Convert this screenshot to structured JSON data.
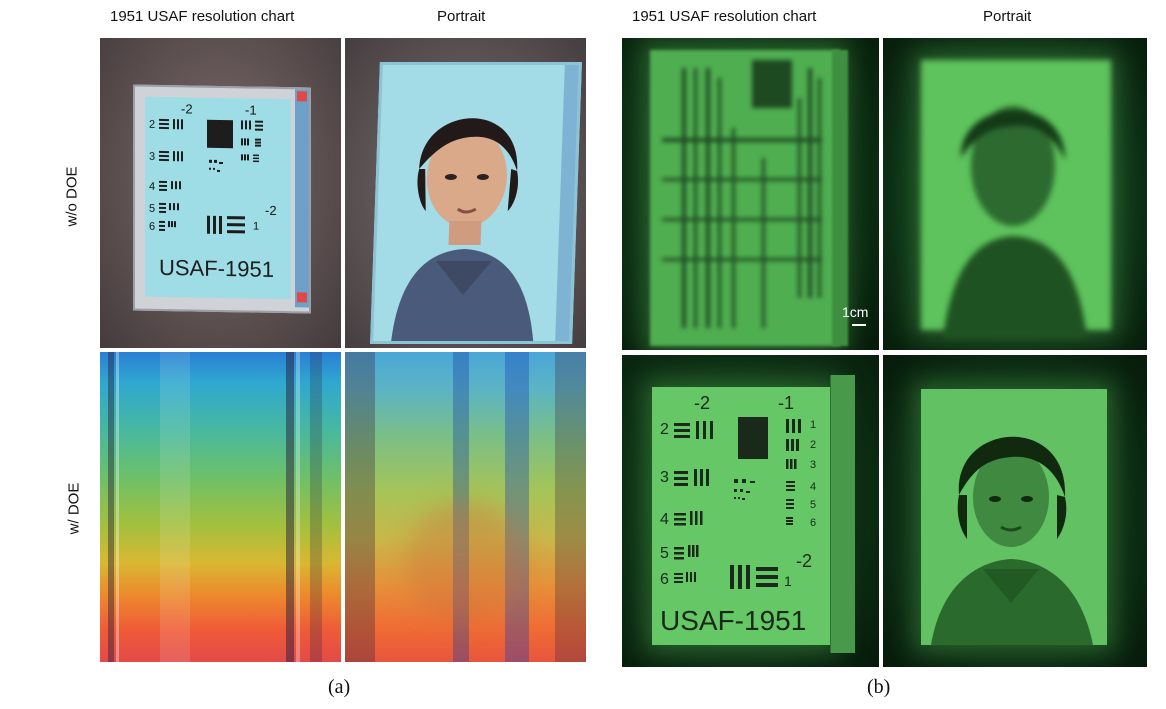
{
  "columns": {
    "a_chart": "1951 USAF resolution chart",
    "a_portrait": "Portrait",
    "b_chart": "1951 USAF resolution chart",
    "b_portrait": "Portrait"
  },
  "rows": {
    "without_doe": "w/o DOE",
    "with_doe": "w/ DOE"
  },
  "captions": {
    "a": "(a)",
    "b": "(b)"
  },
  "usaf_chart": {
    "group_labels": [
      "-2",
      "-1"
    ],
    "element_numbers": [
      "2",
      "3",
      "4",
      "5",
      "6"
    ],
    "right_element_numbers": [
      "1",
      "2",
      "3",
      "4",
      "5",
      "6"
    ],
    "lower_group_label": "-2",
    "lower_element": "1",
    "title": "USAF-1951"
  },
  "scale_bar": {
    "label": "1cm"
  },
  "colors": {
    "screen_cyan": "#9edde6",
    "green_display": "#5ec35c",
    "dark_green_bg": "#0b2a12"
  }
}
